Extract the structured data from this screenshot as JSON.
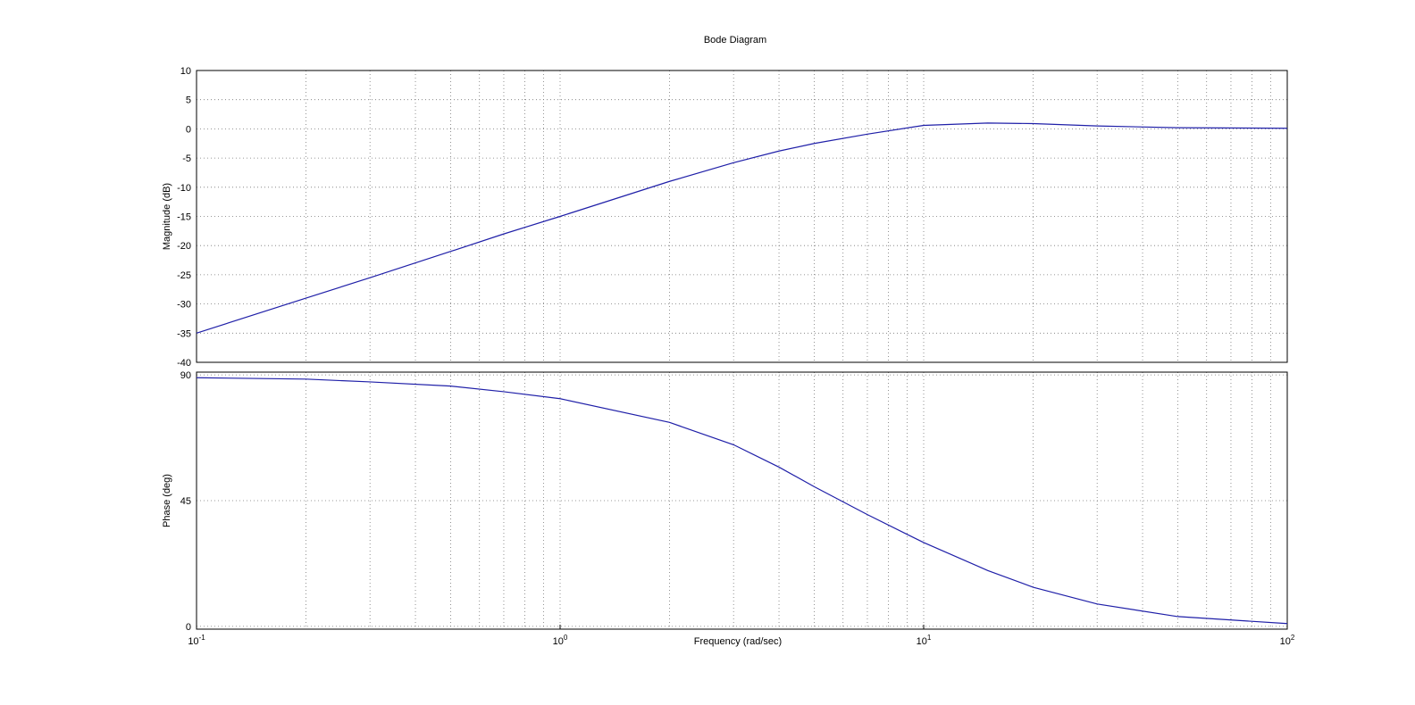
{
  "chart_data": [
    {
      "type": "line",
      "title": "Bode Diagram",
      "ylabel": "Magnitude (dB)",
      "x": [
        0.1,
        0.2,
        0.3,
        0.5,
        0.7,
        1,
        2,
        3,
        4,
        5,
        7,
        10,
        15,
        20,
        30,
        50,
        100
      ],
      "values": [
        -35,
        -29,
        -25.5,
        -21,
        -18,
        -15,
        -9,
        -5.8,
        -3.8,
        -2.5,
        -0.9,
        0.6,
        1.0,
        0.9,
        0.5,
        0.2,
        0.1
      ],
      "color": "#1f1fa8",
      "xscale": "log",
      "xlim": [
        0.1,
        100
      ],
      "ylim": [
        -40,
        10
      ],
      "yticks": [
        -40,
        -35,
        -30,
        -25,
        -20,
        -15,
        -10,
        -5,
        0,
        5,
        10
      ],
      "grid": true
    },
    {
      "type": "line",
      "ylabel": "Phase (deg)",
      "xlabel": "Frequency  (rad/sec)",
      "x": [
        0.1,
        0.2,
        0.3,
        0.5,
        0.7,
        1,
        2,
        3,
        4,
        5,
        7,
        10,
        15,
        20,
        30,
        50,
        100
      ],
      "values": [
        89,
        88.5,
        87.5,
        86,
        84,
        81.5,
        73,
        65,
        57,
        50,
        40,
        30,
        20,
        14,
        8,
        3.5,
        1
      ],
      "color": "#1f1fa8",
      "xscale": "log",
      "xlim": [
        0.1,
        100
      ],
      "ylim": [
        -1,
        91
      ],
      "yticks": [
        0,
        45,
        90
      ],
      "xticks": [
        {
          "value": 0.1,
          "label": "10",
          "exp": "-1"
        },
        {
          "value": 1,
          "label": "10",
          "exp": "0"
        },
        {
          "value": 10,
          "label": "10",
          "exp": "1"
        },
        {
          "value": 100,
          "label": "10",
          "exp": "2"
        }
      ],
      "grid": true
    }
  ]
}
